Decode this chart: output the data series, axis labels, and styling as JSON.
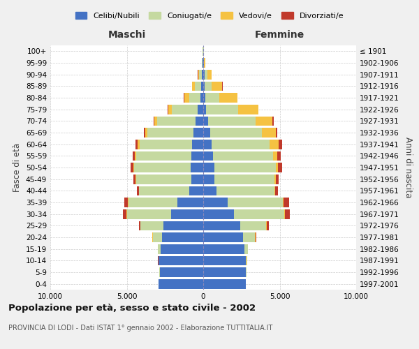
{
  "age_groups": [
    "0-4",
    "5-9",
    "10-14",
    "15-19",
    "20-24",
    "25-29",
    "30-34",
    "35-39",
    "40-44",
    "45-49",
    "50-54",
    "55-59",
    "60-64",
    "65-69",
    "70-74",
    "75-79",
    "80-84",
    "85-89",
    "90-94",
    "95-99",
    "100+"
  ],
  "birth_years": [
    "1997-2001",
    "1992-1996",
    "1987-1991",
    "1982-1986",
    "1977-1981",
    "1972-1976",
    "1967-1971",
    "1962-1966",
    "1957-1961",
    "1952-1956",
    "1947-1951",
    "1942-1946",
    "1937-1941",
    "1932-1936",
    "1927-1931",
    "1922-1926",
    "1917-1921",
    "1912-1916",
    "1907-1911",
    "1902-1906",
    "≤ 1901"
  ],
  "males": {
    "celibi": [
      2900,
      2850,
      2900,
      2800,
      2700,
      2600,
      2100,
      1700,
      900,
      780,
      800,
      780,
      750,
      650,
      500,
      350,
      200,
      130,
      80,
      30,
      20
    ],
    "coniugati": [
      5,
      10,
      40,
      150,
      600,
      1500,
      2900,
      3200,
      3300,
      3600,
      3700,
      3600,
      3400,
      3000,
      2500,
      1700,
      700,
      400,
      180,
      40,
      10
    ],
    "vedovi": [
      2,
      5,
      5,
      10,
      20,
      30,
      30,
      30,
      20,
      30,
      50,
      80,
      120,
      150,
      200,
      250,
      350,
      200,
      80,
      20,
      5
    ],
    "divorziati": [
      1,
      2,
      5,
      10,
      30,
      80,
      200,
      250,
      130,
      160,
      200,
      150,
      150,
      80,
      50,
      30,
      20,
      10,
      5,
      2,
      1
    ]
  },
  "females": {
    "nubili": [
      2800,
      2800,
      2800,
      2700,
      2600,
      2400,
      2000,
      1600,
      850,
      750,
      750,
      650,
      550,
      450,
      320,
      200,
      130,
      100,
      80,
      25,
      15
    ],
    "coniugate": [
      5,
      10,
      50,
      200,
      800,
      1700,
      3300,
      3600,
      3800,
      3900,
      4000,
      3900,
      3800,
      3400,
      3100,
      2100,
      900,
      450,
      200,
      40,
      10
    ],
    "vedove": [
      2,
      3,
      5,
      10,
      30,
      50,
      50,
      50,
      50,
      80,
      150,
      300,
      600,
      900,
      1100,
      1300,
      1200,
      700,
      250,
      50,
      5
    ],
    "divorziate": [
      1,
      2,
      5,
      15,
      50,
      120,
      300,
      350,
      180,
      220,
      280,
      200,
      200,
      100,
      70,
      30,
      20,
      10,
      5,
      2,
      1
    ]
  },
  "colors": {
    "celibi_nubili": "#4472C4",
    "coniugati": "#C5D9A0",
    "vedovi": "#F5C242",
    "divorziati": "#C0392B"
  },
  "xlim": 10000,
  "xticks": [
    -10000,
    -5000,
    0,
    5000,
    10000
  ],
  "xticklabels": [
    "10.000",
    "5.000",
    "0",
    "5.000",
    "10.000"
  ],
  "title": "Popolazione per età, sesso e stato civile - 2002",
  "subtitle": "PROVINCIA DI LODI - Dati ISTAT 1° gennaio 2002 - Elaborazione TUTTITALIA.IT",
  "ylabel_left": "Fasce di età",
  "ylabel_right": "Anni di nascita",
  "header_left": "Maschi",
  "header_right": "Femmine",
  "legend_labels": [
    "Celibi/Nubili",
    "Coniugati/e",
    "Vedovi/e",
    "Divorziati/e"
  ],
  "background_color": "#f0f0f0",
  "plot_bg_color": "#ffffff"
}
